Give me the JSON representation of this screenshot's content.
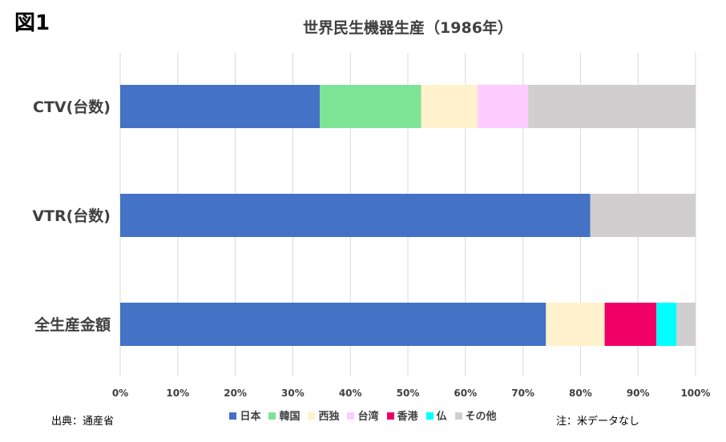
{
  "figure_label": "図1",
  "source": "出典：通産省",
  "note": "注：米データなし",
  "chart_data": {
    "type": "bar",
    "orientation": "horizontal",
    "stacked": "percent",
    "title": "世界民生機器生産（1986年）",
    "categories": [
      "CTV(台数)",
      "VTR(台数)",
      "全生産金額"
    ],
    "series": [
      {
        "name": "日本",
        "color": "#4472C4",
        "values": [
          34.7,
          81.7,
          74.0
        ]
      },
      {
        "name": "韓国",
        "color": "#7DE495",
        "values": [
          17.6,
          0,
          0
        ]
      },
      {
        "name": "西独",
        "color": "#FFF2CC",
        "values": [
          9.8,
          0,
          10.2
        ]
      },
      {
        "name": "台湾",
        "color": "#FFCCFF",
        "values": [
          8.8,
          0,
          0
        ]
      },
      {
        "name": "香港",
        "color": "#F00066",
        "values": [
          0,
          0,
          9.0
        ]
      },
      {
        "name": "仏",
        "color": "#00FFFF",
        "values": [
          0,
          0,
          3.5
        ]
      },
      {
        "name": "その他",
        "color": "#D0CECE",
        "values": [
          29.1,
          18.3,
          3.3
        ]
      }
    ],
    "xlim": [
      0,
      100
    ],
    "x_ticks": [
      "0%",
      "10%",
      "20%",
      "30%",
      "40%",
      "50%",
      "60%",
      "70%",
      "80%",
      "90%",
      "100%"
    ],
    "grid": "vertical",
    "legend": "bottom"
  }
}
